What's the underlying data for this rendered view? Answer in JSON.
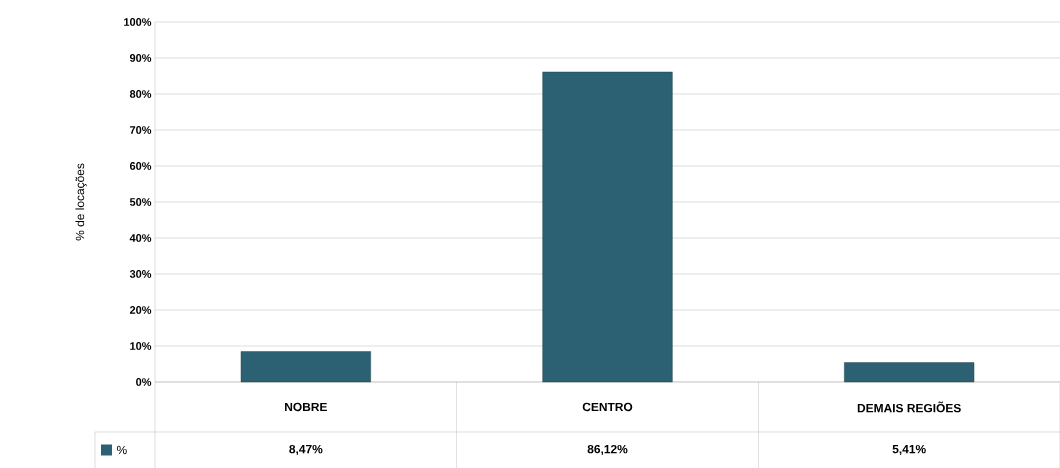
{
  "chart_data": {
    "type": "bar",
    "ylabel": "% de locações",
    "categories": [
      "NOBRE",
      "CENTRO",
      "DEMAIS REGIÕES"
    ],
    "series": [
      {
        "name": "%",
        "color": "#2b6172",
        "values": [
          8.47,
          86.12,
          5.41
        ]
      }
    ],
    "value_labels": [
      "8,47%",
      "86,12%",
      "5,41%"
    ],
    "ylim": [
      0,
      100
    ],
    "yticks": [
      {
        "value": 0,
        "label": "0%"
      },
      {
        "value": 10,
        "label": "10%"
      },
      {
        "value": 20,
        "label": "20%"
      },
      {
        "value": 30,
        "label": "30%"
      },
      {
        "value": 40,
        "label": "40%"
      },
      {
        "value": 50,
        "label": "50%"
      },
      {
        "value": 60,
        "label": "60%"
      },
      {
        "value": 70,
        "label": "70%"
      },
      {
        "value": 80,
        "label": "80%"
      },
      {
        "value": 90,
        "label": "90%"
      },
      {
        "value": 100,
        "label": "100%"
      }
    ],
    "grid": "y",
    "legend": "bottom"
  }
}
